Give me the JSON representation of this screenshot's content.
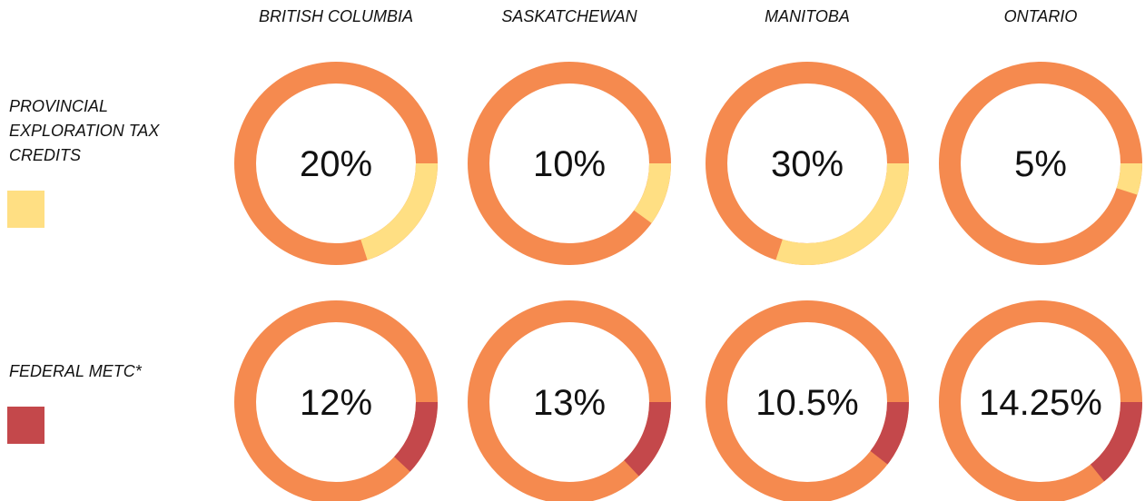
{
  "chart_data": {
    "type": "donut",
    "categories": [
      "BRITISH COLUMBIA",
      "SASKATCHEWAN",
      "MANITOBA",
      "ONTARIO"
    ],
    "base_color": "#f58a4f",
    "series": [
      {
        "name": "PROVINCIAL EXPLORATION TAX CREDITS",
        "color": "#ffdf83",
        "values": [
          20,
          10,
          30,
          5
        ],
        "value_labels": [
          "20%",
          "10%",
          "30%",
          "5%"
        ]
      },
      {
        "name": "FEDERAL METC*",
        "color": "#c4484b",
        "values": [
          12,
          13,
          10.5,
          14.25
        ],
        "value_labels": [
          "12%",
          "13%",
          "10.5%",
          "14.25%"
        ]
      }
    ]
  }
}
